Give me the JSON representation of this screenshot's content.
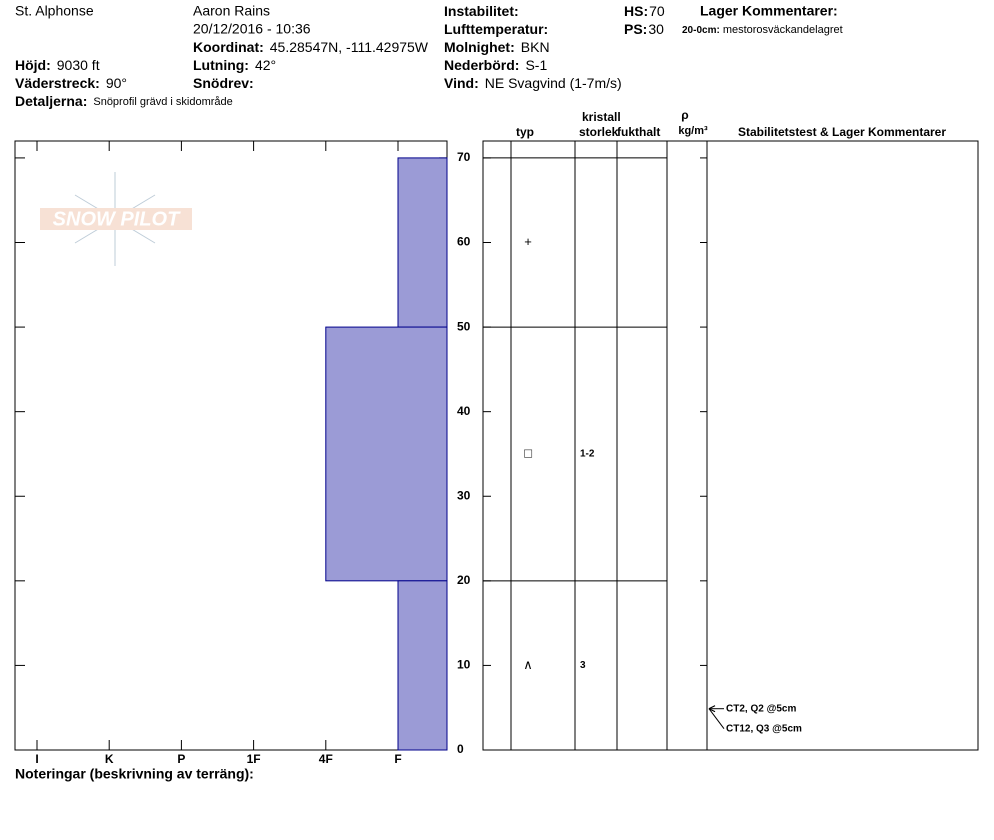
{
  "header": {
    "location": "St. Alphonse",
    "observer": "Aaron Rains",
    "datetime": "20/12/2016 - 10:36",
    "fields": [
      {
        "label": "Höjd:",
        "value": "9030 ft"
      },
      {
        "label": "Väderstreck:",
        "value": "90°"
      },
      {
        "label": "Detaljerna:",
        "value": "Snöprofil grävd i skidområde"
      },
      {
        "label": "Koordinat:",
        "value": "45.28547N, -111.42975W"
      },
      {
        "label": "Lutning:",
        "value": "42°"
      },
      {
        "label": "Snödrev:"
      },
      {
        "label": "Instabilitet:"
      },
      {
        "label": "Lufttemperatur:"
      },
      {
        "label": "Molnighet:",
        "value": "BKN"
      },
      {
        "label": "Nederbörd:",
        "value": "S-1"
      },
      {
        "label": "Vind:",
        "value": "NE Svagvind (1-7m/s)"
      },
      {
        "label": "HS:",
        "value": 70
      },
      {
        "label": "PS:",
        "value": 30
      }
    ],
    "comments_title": "Lager Kommentarer:",
    "layer_comment": {
      "range": "20-0cm:",
      "text": "mestorosväckandelagret"
    }
  },
  "logo": "SNOW PILOT",
  "chart_data": {
    "type": "snow-profile",
    "ylim": [
      0,
      72
    ],
    "yticks": [
      0,
      10,
      20,
      30,
      40,
      50,
      60,
      70
    ],
    "hardness_categories": [
      "I",
      "K",
      "P",
      "1F",
      "4F",
      "F"
    ],
    "color": "#9b9bd6",
    "layers": [
      {
        "top": 70,
        "bottom": 50,
        "hardness": "F"
      },
      {
        "top": 50,
        "bottom": 20,
        "hardness": "4F"
      },
      {
        "top": 20,
        "bottom": 0,
        "hardness": "F"
      }
    ],
    "columns": {
      "type": "typ",
      "crystal": "kristall",
      "size": "storlek",
      "moisture": "fukthalt",
      "rho": "ρ",
      "density_unit": "kg/m³",
      "tests": "Stabilitetstest & Lager Kommentarer"
    },
    "grains": [
      {
        "depth": 60,
        "symbol": "+"
      },
      {
        "depth": 35,
        "symbol": "□",
        "size": "1-2"
      },
      {
        "depth": 10,
        "symbol": "∧",
        "size": "3"
      }
    ],
    "tests": [
      {
        "depth": 5,
        "label": "CT2, Q2 @5cm"
      },
      {
        "depth": 5,
        "label": "CT12, Q3 @5cm"
      }
    ]
  },
  "footer": {
    "notes": "Noteringar (beskrivning av terräng):"
  }
}
